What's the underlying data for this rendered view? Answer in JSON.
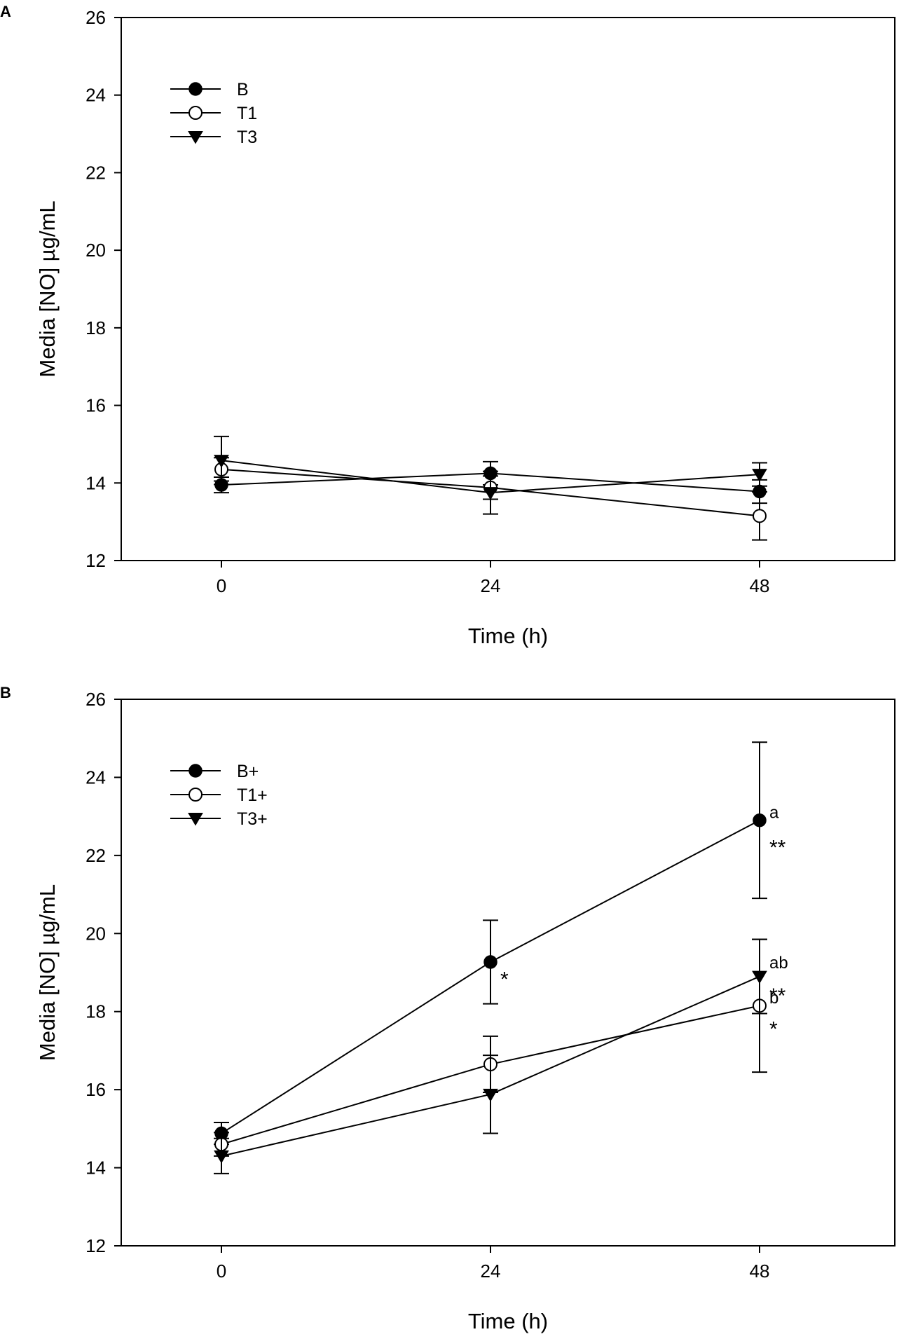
{
  "chart_data": [
    {
      "panel": "A",
      "type": "line",
      "xlabel": "Time (h)",
      "ylabel": "Media [NO] µg/mL",
      "x": [
        0,
        24,
        48
      ],
      "x_tick_labels": [
        "0",
        "24",
        "48"
      ],
      "ylim": [
        12,
        26
      ],
      "y_ticks": [
        12,
        14,
        16,
        18,
        20,
        22,
        24,
        26
      ],
      "legend_position": "top-left",
      "series": [
        {
          "name": "B",
          "marker": "filled-circle",
          "values": [
            13.95,
            14.25,
            13.78
          ],
          "errors": [
            0.2,
            0.3,
            0.3
          ]
        },
        {
          "name": "T1",
          "marker": "open-circle",
          "values": [
            14.35,
            13.88,
            13.15
          ],
          "errors": [
            0.3,
            0.3,
            0.62
          ]
        },
        {
          "name": "T3",
          "marker": "filled-triangle-down",
          "values": [
            14.58,
            13.75,
            14.22
          ],
          "errors": [
            0.62,
            0.55,
            0.3
          ]
        }
      ],
      "annotations": []
    },
    {
      "panel": "B",
      "type": "line",
      "xlabel": "Time (h)",
      "ylabel": "Media [NO] µg/mL",
      "x": [
        0,
        24,
        48
      ],
      "x_tick_labels": [
        "0",
        "24",
        "48"
      ],
      "ylim": [
        12,
        26
      ],
      "y_ticks": [
        12,
        14,
        16,
        18,
        20,
        22,
        24,
        26
      ],
      "legend_position": "top-left",
      "series": [
        {
          "name": "B+",
          "marker": "filled-circle",
          "values": [
            14.88,
            19.27,
            22.9
          ],
          "errors": [
            0.28,
            1.07,
            2.0
          ]
        },
        {
          "name": "T1+",
          "marker": "open-circle",
          "values": [
            14.6,
            16.65,
            18.15
          ],
          "errors": [
            0.3,
            0.72,
            1.7
          ]
        },
        {
          "name": "T3+",
          "marker": "filled-triangle-down",
          "values": [
            14.3,
            15.88,
            18.9
          ],
          "errors": [
            0.45,
            1.0,
            0.95
          ]
        }
      ],
      "annotations": [
        {
          "x": 24,
          "y": 19.27,
          "text": "*",
          "style": "star",
          "dy": -0.3
        },
        {
          "x": 48,
          "y": 22.9,
          "text": "a",
          "style": "letter",
          "dy": 0.2
        },
        {
          "x": 48,
          "y": 22.9,
          "text": "**",
          "style": "star",
          "dy": -0.55
        },
        {
          "x": 48,
          "y": 18.9,
          "text": "ab",
          "style": "letter",
          "dy": 0.35
        },
        {
          "x": 48,
          "y": 18.9,
          "text": "**",
          "style": "star",
          "dy": -0.35
        },
        {
          "x": 48,
          "y": 18.15,
          "text": "b",
          "style": "letter",
          "dy": 0.2
        },
        {
          "x": 48,
          "y": 18.15,
          "text": "*",
          "style": "star",
          "dy": -0.45
        }
      ]
    }
  ]
}
